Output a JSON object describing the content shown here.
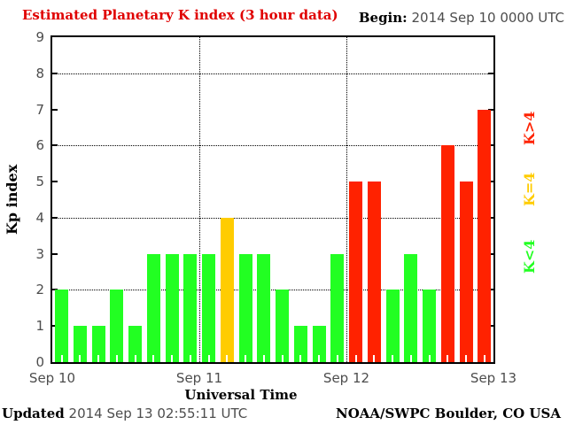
{
  "header": {
    "title": "Estimated Planetary K index (3 hour data)",
    "begin_label": "Begin:",
    "begin_value": "2014 Sep 10 0000 UTC"
  },
  "y_axis": {
    "label": "Kp index",
    "ticks": [
      "0",
      "1",
      "2",
      "3",
      "4",
      "5",
      "6",
      "7",
      "8",
      "9"
    ]
  },
  "x_axis": {
    "label": "Universal Time",
    "days": [
      "Sep 10",
      "Sep 11",
      "Sep 12",
      "Sep 13"
    ]
  },
  "legend": [
    {
      "label": "K>4",
      "color": "#ff2200"
    },
    {
      "label": "K=4",
      "color": "#ffcc00"
    },
    {
      "label": "K<4",
      "color": "#22ff22"
    }
  ],
  "footer": {
    "updated_label": "Updated",
    "updated_value": "2014 Sep 13 02:55:11 UTC",
    "credit": "NOAA/SWPC Boulder, CO USA"
  },
  "chart_data": {
    "type": "bar",
    "title": "Estimated Planetary K index (3 hour data)",
    "xlabel": "Universal Time",
    "ylabel": "Kp index",
    "ylim": [
      0,
      9
    ],
    "begin": "2014 Sep 10 0000 UTC",
    "interval_hours": 3,
    "bars_per_day": 8,
    "categories": [
      "Sep 10",
      "Sep 11",
      "Sep 12",
      "Sep 13"
    ],
    "values": [
      2,
      1,
      1,
      2,
      1,
      3,
      3,
      3,
      3,
      4,
      3,
      3,
      2,
      1,
      1,
      3,
      5,
      5,
      2,
      3,
      2,
      6,
      5,
      7
    ],
    "color_rule": "K<4 green, K=4 yellow, K>4 red",
    "colors": {
      "low": "#22ff22",
      "mid": "#ffcc00",
      "high": "#ff2200"
    },
    "gridlines_y": [
      2,
      4,
      6,
      8
    ],
    "day_boundary_lines_x_days": [
      1,
      2
    ],
    "legend_position": "right"
  }
}
